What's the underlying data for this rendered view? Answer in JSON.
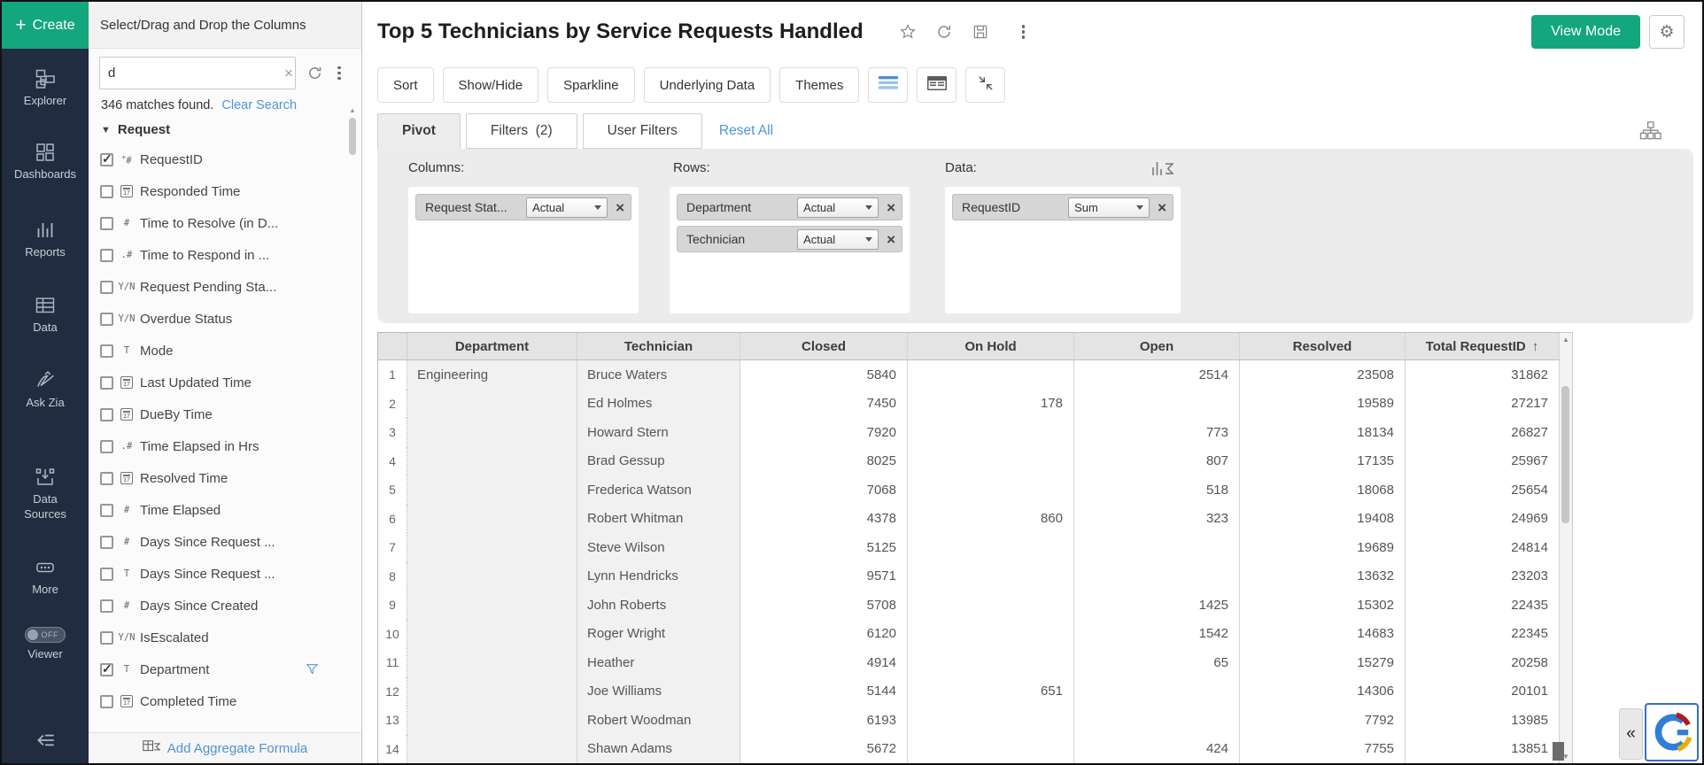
{
  "app": {
    "create_label": "Create",
    "nav_items": [
      {
        "id": "explorer",
        "label": "Explorer",
        "icon": "explorer-icon"
      },
      {
        "id": "dashboards",
        "label": "Dashboards",
        "icon": "dashboards-icon"
      },
      {
        "id": "reports",
        "label": "Reports",
        "icon": "reports-icon"
      },
      {
        "id": "data",
        "label": "Data",
        "icon": "data-table-icon"
      },
      {
        "id": "ask-zia",
        "label": "Ask Zia",
        "icon": "ask-zia-icon"
      },
      {
        "id": "data-sources",
        "label": "Data Sources",
        "icon": "data-sources-icon"
      },
      {
        "id": "more",
        "label": "More",
        "icon": "more-icon"
      }
    ],
    "viewer_toggle": {
      "label": "Viewer",
      "state": "OFF"
    }
  },
  "columns_panel": {
    "header": "Select/Drag and Drop the Columns",
    "search_value": "d",
    "matches_text": "346 matches found.",
    "clear_search_label": "Clear Search",
    "section_label": "Request",
    "fields": [
      {
        "name": "RequestID",
        "type": "autonumber",
        "type_glyph": "+#",
        "checked": true,
        "filtered": false
      },
      {
        "name": "Responded Time",
        "type": "date",
        "type_glyph": "",
        "checked": false,
        "filtered": false
      },
      {
        "name": "Time to Resolve (in D...",
        "type": "number",
        "type_glyph": "#",
        "checked": false,
        "filtered": false
      },
      {
        "name": "Time to Respond in ...",
        "type": "decimal",
        "type_glyph": ".#",
        "checked": false,
        "filtered": false
      },
      {
        "name": "Request Pending Sta...",
        "type": "boolean",
        "type_glyph": "Y/N",
        "checked": false,
        "filtered": false
      },
      {
        "name": "Overdue Status",
        "type": "boolean",
        "type_glyph": "Y/N",
        "checked": false,
        "filtered": false
      },
      {
        "name": "Mode",
        "type": "text",
        "type_glyph": "T",
        "checked": false,
        "filtered": false
      },
      {
        "name": "Last Updated Time",
        "type": "date",
        "type_glyph": "",
        "checked": false,
        "filtered": false
      },
      {
        "name": "DueBy Time",
        "type": "date",
        "type_glyph": "",
        "checked": false,
        "filtered": false
      },
      {
        "name": "Time Elapsed in Hrs",
        "type": "decimal",
        "type_glyph": ".#",
        "checked": false,
        "filtered": false
      },
      {
        "name": "Resolved Time",
        "type": "date",
        "type_glyph": "",
        "checked": false,
        "filtered": false
      },
      {
        "name": "Time Elapsed",
        "type": "number",
        "type_glyph": "#",
        "checked": false,
        "filtered": false
      },
      {
        "name": "Days Since Request ...",
        "type": "number",
        "type_glyph": "#",
        "checked": false,
        "filtered": false
      },
      {
        "name": "Days Since Request ...",
        "type": "text",
        "type_glyph": "T",
        "checked": false,
        "filtered": false
      },
      {
        "name": "Days Since Created",
        "type": "number",
        "type_glyph": "#",
        "checked": false,
        "filtered": false
      },
      {
        "name": "IsEscalated",
        "type": "boolean",
        "type_glyph": "Y/N",
        "checked": false,
        "filtered": false
      },
      {
        "name": "Department",
        "type": "text",
        "type_glyph": "T",
        "checked": true,
        "filtered": true
      },
      {
        "name": "Completed Time",
        "type": "date",
        "type_glyph": "",
        "checked": false,
        "filtered": false
      }
    ],
    "add_formula_label": "Add Aggregate Formula"
  },
  "report_header": {
    "title": "Top 5 Technicians by Service Requests Handled",
    "icons": [
      "star-icon",
      "refresh-icon",
      "save-icon",
      "kebab-icon"
    ],
    "view_mode_label": "View Mode",
    "settings_icon": "gear-icon"
  },
  "toolbar": {
    "buttons": [
      "Sort",
      "Show/Hide",
      "Sparkline",
      "Underlying Data",
      "Themes"
    ],
    "view_buttons": [
      {
        "icon": "grid-view-icon",
        "active": true
      },
      {
        "icon": "compact-grid-view-icon",
        "active": false
      },
      {
        "icon": "collapse-view-icon",
        "active": false
      }
    ]
  },
  "tabs": {
    "pivot": "Pivot",
    "filters": "Filters  (2)",
    "user_filters": "User Filters",
    "reset_all": "Reset All",
    "hierarchy_icon": "hierarchy-icon"
  },
  "pivot_config": {
    "columns_label": "Columns:",
    "rows_label": "Rows:",
    "data_label": "Data:",
    "columns": [
      {
        "field": "Request Stat...",
        "agg": "Actual"
      }
    ],
    "rows": [
      {
        "field": "Department",
        "agg": "Actual"
      },
      {
        "field": "Technician",
        "agg": "Actual"
      }
    ],
    "data": [
      {
        "field": "RequestID",
        "agg": "Sum"
      }
    ]
  },
  "table": {
    "headers": [
      "Department",
      "Technician",
      "Closed",
      "On Hold",
      "Open",
      "Resolved",
      "Total RequestID"
    ],
    "sorted_by": "Total RequestID",
    "sort_arrow": "↑",
    "rows": [
      {
        "n": "1",
        "department": "Engineering",
        "technician": "Bruce Waters",
        "closed": "5840",
        "on_hold": "",
        "open": "2514",
        "resolved": "23508",
        "total": "31862"
      },
      {
        "n": "2",
        "department": "",
        "technician": "Ed Holmes",
        "closed": "7450",
        "on_hold": "178",
        "open": "",
        "resolved": "19589",
        "total": "27217"
      },
      {
        "n": "3",
        "department": "",
        "technician": "Howard Stern",
        "closed": "7920",
        "on_hold": "",
        "open": "773",
        "resolved": "18134",
        "total": "26827"
      },
      {
        "n": "4",
        "department": "",
        "technician": "Brad Gessup",
        "closed": "8025",
        "on_hold": "",
        "open": "807",
        "resolved": "17135",
        "total": "25967"
      },
      {
        "n": "5",
        "department": "",
        "technician": "Frederica Watson",
        "closed": "7068",
        "on_hold": "",
        "open": "518",
        "resolved": "18068",
        "total": "25654"
      },
      {
        "n": "6",
        "department": "",
        "technician": "Robert Whitman",
        "closed": "4378",
        "on_hold": "860",
        "open": "323",
        "resolved": "19408",
        "total": "24969"
      },
      {
        "n": "7",
        "department": "",
        "technician": "Steve Wilson",
        "closed": "5125",
        "on_hold": "",
        "open": "",
        "resolved": "19689",
        "total": "24814"
      },
      {
        "n": "8",
        "department": "",
        "technician": "Lynn Hendricks",
        "closed": "9571",
        "on_hold": "",
        "open": "",
        "resolved": "13632",
        "total": "23203"
      },
      {
        "n": "9",
        "department": "",
        "technician": "John Roberts",
        "closed": "5708",
        "on_hold": "",
        "open": "1425",
        "resolved": "15302",
        "total": "22435"
      },
      {
        "n": "10",
        "department": "",
        "technician": "Roger Wright",
        "closed": "6120",
        "on_hold": "",
        "open": "1542",
        "resolved": "14683",
        "total": "22345"
      },
      {
        "n": "11",
        "department": "",
        "technician": "Heather",
        "closed": "4914",
        "on_hold": "",
        "open": "65",
        "resolved": "15279",
        "total": "20258"
      },
      {
        "n": "12",
        "department": "",
        "technician": "Joe Williams",
        "closed": "5144",
        "on_hold": "651",
        "open": "",
        "resolved": "14306",
        "total": "20101"
      },
      {
        "n": "13",
        "department": "",
        "technician": "Robert Woodman",
        "closed": "6193",
        "on_hold": "",
        "open": "",
        "resolved": "7792",
        "total": "13985"
      },
      {
        "n": "14",
        "department": "",
        "technician": "Shawn Adams",
        "closed": "5672",
        "on_hold": "",
        "open": "424",
        "resolved": "7755",
        "total": "13851"
      }
    ]
  },
  "colors": {
    "accent_green": "#14a67e",
    "link_blue": "#4e94d6",
    "rail_bg": "#212c40"
  }
}
